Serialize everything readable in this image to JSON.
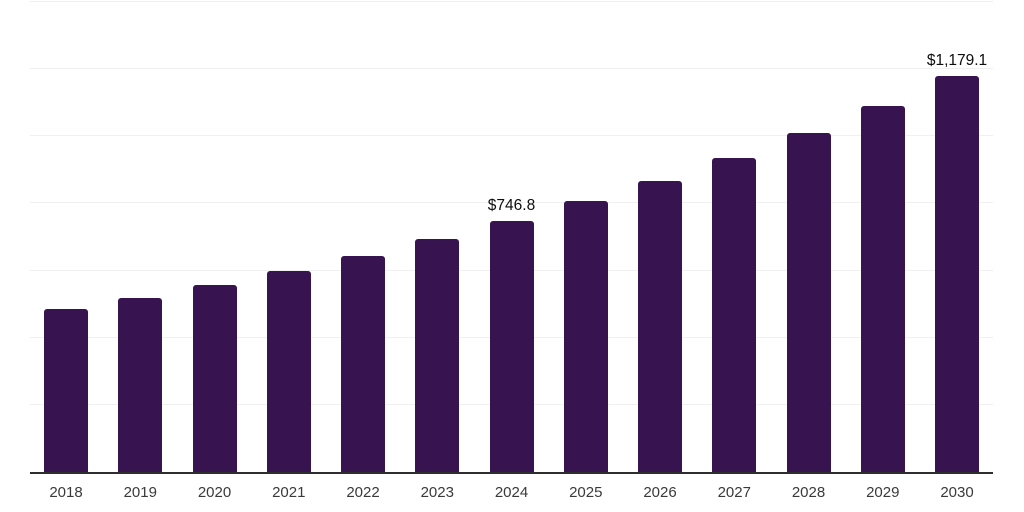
{
  "chart_data": {
    "type": "bar",
    "categories": [
      "2018",
      "2019",
      "2020",
      "2021",
      "2022",
      "2023",
      "2024",
      "2025",
      "2026",
      "2027",
      "2028",
      "2029",
      "2030"
    ],
    "values": [
      484.4,
      518.5,
      555.6,
      598.5,
      644.4,
      693.3,
      746.8,
      807.4,
      866.7,
      936.3,
      1010.4,
      1090.4,
      1179.1
    ],
    "point_labels": [
      null,
      null,
      null,
      null,
      null,
      null,
      "$746.8",
      null,
      null,
      null,
      null,
      null,
      "$1,179.1"
    ],
    "ylim": [
      0,
      1400
    ],
    "grid_step": 200,
    "grid": true,
    "legend": false,
    "xlabel": "",
    "ylabel": "",
    "colors": {
      "bar": "#371450",
      "axis": "#2e2e2e",
      "gridline": "#f0f0f0",
      "tick_text": "#3a3a3a",
      "label_text": "#0d0d0d",
      "background": "#ffffff"
    }
  }
}
